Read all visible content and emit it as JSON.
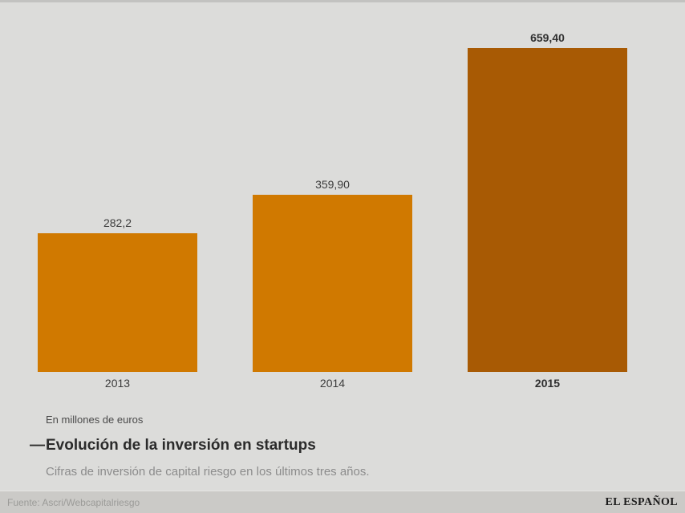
{
  "chart_data": {
    "type": "bar",
    "categories": [
      "2013",
      "2014",
      "2015"
    ],
    "values": [
      282.2,
      359.9,
      659.4
    ],
    "value_labels": [
      "282,2",
      "359,90",
      "659,40"
    ],
    "title": "Evolución de la inversión en startups",
    "subtitle": "Cifras de inversión de capital riesgo en los últimos tres años.",
    "units_note": "En millones de euros",
    "xlabel": "",
    "ylabel": "",
    "ylim": [
      0,
      700
    ],
    "grid": false,
    "legend": false,
    "bar_color": "#d07900",
    "highlight_color": "#a85a04",
    "highlight_index": 2
  },
  "caption": {
    "dash": "—",
    "units_note": "En millones de euros",
    "title": "Evolución de la inversión en startups",
    "subtitle": "Cifras de inversión de capital riesgo en los últimos tres años."
  },
  "footer": {
    "source": "Fuente: Ascri/Webcapitalriesgo",
    "brand": "EL ESPAÑOL"
  },
  "colors": {
    "background": "#dcdcda",
    "footer_background": "#cbcac7",
    "bar": "#d07900",
    "bar_highlight": "#a85a04"
  }
}
